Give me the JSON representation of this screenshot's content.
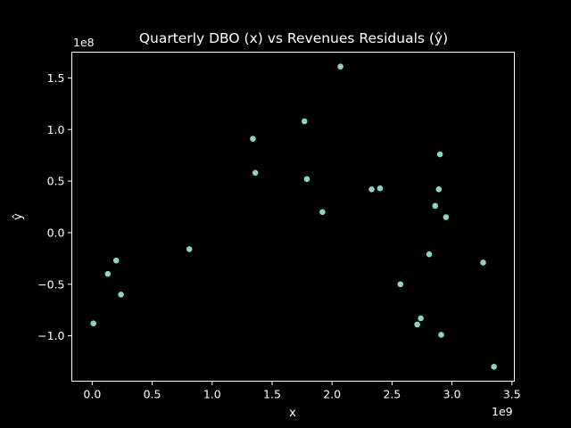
{
  "chart_data": {
    "type": "scatter",
    "title": "Quarterly DBO (x) vs Revenues Residuals (ŷ)",
    "xlabel": "x",
    "ylabel": "ŷ",
    "x_offset_label": "1e9",
    "y_offset_label": "1e8",
    "xlim": [
      -0.17,
      3.52
    ],
    "ylim": [
      -1.44,
      1.75
    ],
    "x_ticks": [
      0.0,
      0.5,
      1.0,
      1.5,
      2.0,
      2.5,
      3.0,
      3.5
    ],
    "x_tick_labels": [
      "0.0",
      "0.5",
      "1.0",
      "1.5",
      "2.0",
      "2.5",
      "3.0",
      "3.5"
    ],
    "y_ticks": [
      -1.0,
      -0.5,
      0.0,
      0.5,
      1.0,
      1.5
    ],
    "y_tick_labels": [
      "−1.0",
      "−0.5",
      "0.0",
      "0.5",
      "1.0",
      "1.5"
    ],
    "grid": false,
    "marker_color": "#8dd3c7",
    "background_color": "#000000",
    "series": [
      {
        "x": [
          0.01,
          0.13,
          0.2,
          0.24,
          0.81,
          1.34,
          1.36,
          1.77,
          1.79,
          1.92,
          2.07,
          2.33,
          2.4,
          2.57,
          2.71,
          2.74,
          2.81,
          2.86,
          2.89,
          2.9,
          2.91,
          2.95,
          3.26,
          3.35
        ],
        "y": [
          -0.88,
          -0.4,
          -0.27,
          -0.6,
          -0.16,
          0.91,
          0.58,
          1.08,
          0.52,
          0.2,
          1.61,
          0.42,
          0.43,
          -0.5,
          -0.89,
          -0.83,
          -0.21,
          0.26,
          0.42,
          0.76,
          -0.99,
          0.15,
          -0.29,
          -1.3
        ]
      }
    ]
  }
}
